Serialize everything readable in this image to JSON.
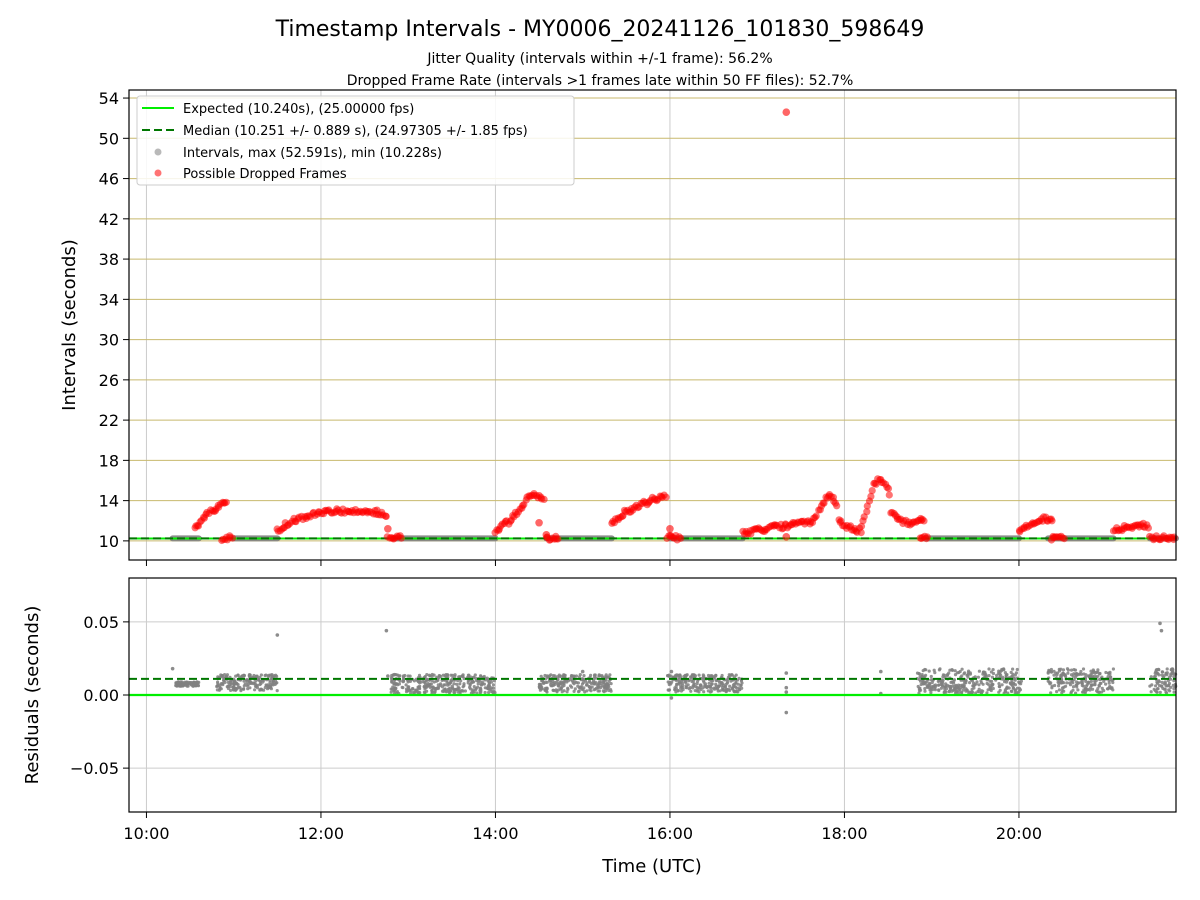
{
  "figure": {
    "title": "Timestamp Intervals - MY0006_20241126_101830_598649",
    "subtitle1": "Jitter Quality (intervals within +/-1 frame): 56.2%",
    "subtitle2": "Dropped Frame Rate (intervals >1 frames late within 50 FF files): 52.7%"
  },
  "colors": {
    "expected": "#00ee00",
    "median": "#007700",
    "intervals": "#808080",
    "dropped": "#ff0000",
    "hgrid_top": "#c8b96e",
    "vgrid": "#cccccc"
  },
  "chart_data": [
    {
      "type": "scatter",
      "ylabel": "Intervals (seconds)",
      "xlim": [
        "09:48",
        "21:48"
      ],
      "ylim": [
        8.1,
        54.8
      ],
      "x_ticks": [
        "10:00",
        "12:00",
        "14:00",
        "16:00",
        "18:00",
        "20:00"
      ],
      "y_ticks": [
        10,
        14,
        18,
        22,
        26,
        30,
        34,
        38,
        42,
        46,
        50,
        54
      ],
      "grid": true,
      "legend_position": "top-left",
      "legend": [
        "Expected (10.240s), (25.00000 fps)",
        "Median (10.251 +/- 0.889 s), (24.97305 +/- 1.85 fps)",
        "Intervals, max (52.591s), min (10.228s)",
        "Possible Dropped Frames"
      ],
      "expected_value": 10.24,
      "median_value": 10.251,
      "series": [
        {
          "name": "Intervals",
          "kind": "segments",
          "data": [
            {
              "start": "10:18",
              "end": "10:36",
              "y": 10.25
            },
            {
              "start": "11:00",
              "end": "11:30",
              "y": 10.25
            },
            {
              "start": "12:50",
              "end": "14:00",
              "y": 10.25
            },
            {
              "start": "14:35",
              "end": "15:20",
              "y": 10.25
            },
            {
              "start": "16:00",
              "end": "16:50",
              "y": 10.25
            },
            {
              "start": "18:55",
              "end": "20:00",
              "y": 10.25
            },
            {
              "start": "20:20",
              "end": "21:05",
              "y": 10.25
            },
            {
              "start": "21:30",
              "end": "21:48",
              "y": 10.25
            }
          ]
        },
        {
          "name": "Possible Dropped Frames",
          "kind": "curves",
          "data": [
            {
              "x": [
                "10:33",
                "10:38",
                "10:43",
                "10:48",
                "10:53",
                "10:56"
              ],
              "y": [
                11.3,
                12.0,
                12.8,
                13.3,
                13.7,
                14.0
              ]
            },
            {
              "x": [
                "11:30",
                "11:40",
                "11:55",
                "12:10",
                "12:25",
                "12:40",
                "12:46"
              ],
              "y": [
                11.0,
                12.0,
                12.7,
                13.0,
                13.0,
                12.8,
                12.4
              ]
            },
            {
              "x": [
                "14:00",
                "14:10",
                "14:18",
                "14:24",
                "14:30",
                "14:34"
              ],
              "y": [
                11.0,
                12.0,
                13.2,
                14.6,
                14.4,
                13.8
              ]
            },
            {
              "x": [
                "15:20",
                "15:30",
                "15:40",
                "15:50",
                "15:58"
              ],
              "y": [
                11.8,
                12.9,
                13.6,
                14.2,
                14.4
              ]
            },
            {
              "x": [
                "16:50",
                "17:00",
                "17:10",
                "17:20",
                "17:30",
                "17:36",
                "17:40"
              ],
              "y": [
                10.8,
                11.0,
                11.3,
                11.5,
                11.7,
                11.9,
                12.1
              ]
            },
            {
              "x": [
                "17:40",
                "17:44",
                "17:48",
                "17:52",
                "17:56"
              ],
              "y": [
                12.3,
                13.5,
                14.3,
                14.4,
                13.2
              ]
            },
            {
              "x": [
                "17:56",
                "18:00",
                "18:04",
                "18:08",
                "18:12"
              ],
              "y": [
                12.0,
                11.5,
                11.3,
                11.1,
                11.0
              ]
            },
            {
              "x": [
                "18:12",
                "18:16",
                "18:20",
                "18:24",
                "18:28",
                "18:32"
              ],
              "y": [
                11.5,
                13.5,
                15.5,
                16.2,
                15.5,
                14.5
              ]
            },
            {
              "x": [
                "18:32",
                "18:38",
                "18:45",
                "18:52",
                "18:56"
              ],
              "y": [
                13.0,
                12.0,
                11.8,
                12.0,
                12.0
              ]
            },
            {
              "x": [
                "20:00",
                "20:08",
                "20:16",
                "20:24"
              ],
              "y": [
                11.0,
                11.7,
                12.2,
                12.2
              ]
            },
            {
              "x": [
                "21:05",
                "21:15",
                "21:25",
                "21:30"
              ],
              "y": [
                11.0,
                11.4,
                11.6,
                11.5
              ]
            },
            {
              "x": [
                "10:52",
                "11:00"
              ],
              "y": [
                10.28,
                10.28
              ]
            },
            {
              "x": [
                "12:46",
                "12:56"
              ],
              "y": [
                10.3,
                10.3
              ]
            },
            {
              "x": [
                "14:35",
                "14:44"
              ],
              "y": [
                10.3,
                10.3
              ]
            },
            {
              "x": [
                "15:58",
                "16:08"
              ],
              "y": [
                10.3,
                10.3
              ]
            },
            {
              "x": [
                "18:52",
                "18:58"
              ],
              "y": [
                10.3,
                10.3
              ]
            },
            {
              "x": [
                "20:22",
                "20:32"
              ],
              "y": [
                10.3,
                10.3
              ]
            },
            {
              "x": [
                "21:30",
                "21:48"
              ],
              "y": [
                10.3,
                10.3
              ]
            }
          ],
          "points": [
            {
              "x": "17:20",
              "y": 52.591
            },
            {
              "x": "17:20",
              "y": 10.4
            },
            {
              "x": "14:30",
              "y": 11.8
            },
            {
              "x": "14:35",
              "y": 10.6
            },
            {
              "x": "16:00",
              "y": 11.2
            },
            {
              "x": "12:46",
              "y": 11.2
            }
          ]
        }
      ]
    },
    {
      "type": "scatter",
      "xlabel": "Time (UTC)",
      "ylabel": "Residuals (seconds)",
      "xlim": [
        "09:48",
        "21:48"
      ],
      "ylim": [
        -0.08,
        0.08
      ],
      "x_ticks": [
        "10:00",
        "12:00",
        "14:00",
        "16:00",
        "18:00",
        "20:00"
      ],
      "y_ticks": [
        0.05,
        0.0,
        -0.05
      ],
      "y_tick_labels": [
        "0.05",
        "0.00",
        "−0.05"
      ],
      "grid": true,
      "zero_line": 0.0,
      "median_line": 0.011,
      "series": [
        {
          "name": "Residuals",
          "kind": "clusters",
          "data": [
            {
              "start": "10:20",
              "end": "10:36",
              "ymin": 0.006,
              "ymax": 0.009
            },
            {
              "start": "10:48",
              "end": "11:30",
              "ymin": 0.003,
              "ymax": 0.014
            },
            {
              "start": "12:48",
              "end": "14:00",
              "ymin": 0.001,
              "ymax": 0.014
            },
            {
              "start": "14:30",
              "end": "15:20",
              "ymin": 0.002,
              "ymax": 0.014
            },
            {
              "start": "15:58",
              "end": "16:50",
              "ymin": 0.002,
              "ymax": 0.014
            },
            {
              "start": "18:50",
              "end": "20:02",
              "ymin": 0.001,
              "ymax": 0.018
            },
            {
              "start": "20:20",
              "end": "21:05",
              "ymin": 0.001,
              "ymax": 0.018
            },
            {
              "start": "21:30",
              "end": "21:48",
              "ymin": 0.001,
              "ymax": 0.018
            }
          ],
          "points": [
            {
              "x": "10:18",
              "y": 0.018
            },
            {
              "x": "11:30",
              "y": 0.041
            },
            {
              "x": "12:45",
              "y": 0.044
            },
            {
              "x": "12:46",
              "y": 0.013
            },
            {
              "x": "15:00",
              "y": 0.016
            },
            {
              "x": "16:01",
              "y": 0.016
            },
            {
              "x": "16:01",
              "y": -0.002
            },
            {
              "x": "17:20",
              "y": 0.015
            },
            {
              "x": "17:20",
              "y": 0.005
            },
            {
              "x": "17:20",
              "y": 0.002
            },
            {
              "x": "17:20",
              "y": -0.012
            },
            {
              "x": "18:25",
              "y": 0.016
            },
            {
              "x": "18:25",
              "y": 0.001
            },
            {
              "x": "21:37",
              "y": 0.049
            },
            {
              "x": "21:38",
              "y": 0.044
            }
          ]
        }
      ]
    }
  ]
}
